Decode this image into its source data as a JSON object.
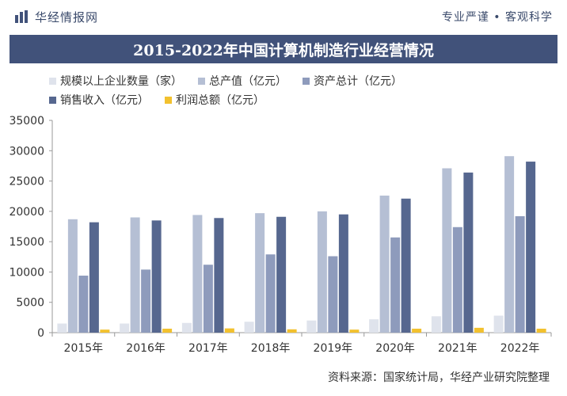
{
  "header": {
    "brand_name": "华经情报网",
    "slogan": "专业严谨 • 客观科学"
  },
  "chart_data": {
    "type": "bar",
    "title": "2015-2022年中国计算机制造行业经营情况",
    "categories": [
      "2015年",
      "2016年",
      "2017年",
      "2018年",
      "2019年",
      "2020年",
      "2021年",
      "2022年"
    ],
    "series": [
      {
        "name": "规模以上企业数量（家）",
        "color": "#dfe3ec",
        "values": [
          1500,
          1500,
          1600,
          1800,
          2000,
          2200,
          2700,
          2800
        ]
      },
      {
        "name": "总产值（亿元）",
        "color": "#b5bfd4",
        "values": [
          18700,
          19000,
          19400,
          19700,
          20000,
          22600,
          27100,
          29100
        ]
      },
      {
        "name": "资产总计（亿元）",
        "color": "#8e9bbc",
        "values": [
          9400,
          10400,
          11200,
          12900,
          12600,
          15700,
          17400,
          19200
        ]
      },
      {
        "name": "销售收入（亿元）",
        "color": "#56678f",
        "values": [
          18200,
          18500,
          18900,
          19100,
          19500,
          22100,
          26400,
          28200
        ]
      },
      {
        "name": "利润总额（亿元）",
        "color": "#f2c12e",
        "values": [
          500,
          650,
          700,
          550,
          500,
          650,
          800,
          650
        ]
      }
    ],
    "yticks": [
      0,
      5000,
      10000,
      15000,
      20000,
      25000,
      30000,
      35000
    ],
    "ylim": [
      0,
      35000
    ],
    "legend": "top"
  },
  "footer": {
    "source": "资料来源：国家统计局，华经产业研究院整理"
  }
}
